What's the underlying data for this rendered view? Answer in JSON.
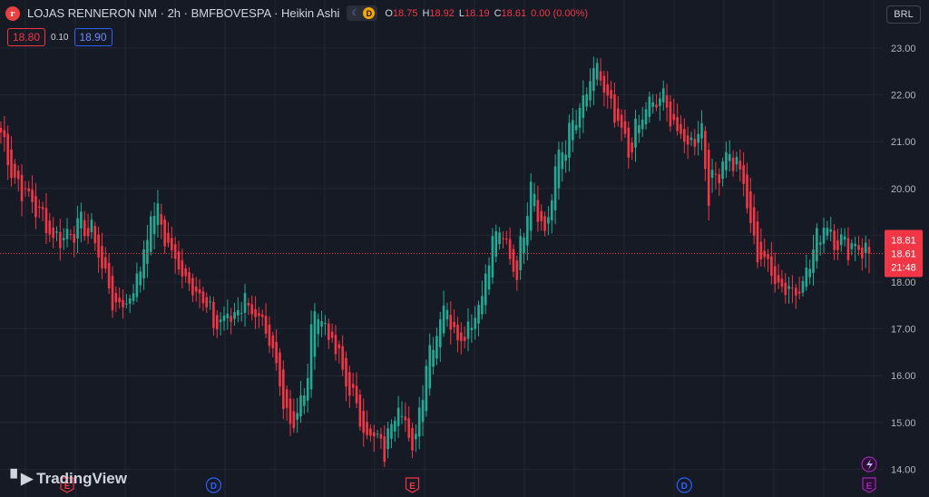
{
  "header": {
    "logo_letter": "r",
    "title": "LOJAS RENNERON NM · 2h · BMFBOVESPA · Heikin Ashi",
    "session_icon": "moon-icon",
    "session_badge": "D",
    "ohlc": [
      {
        "key": "O",
        "value": "18.75"
      },
      {
        "key": "H",
        "value": "18.92"
      },
      {
        "key": "L",
        "value": "18.19"
      },
      {
        "key": "C",
        "value": "18.61"
      },
      {
        "key": "",
        "value": "0.00 (0.00%)"
      }
    ]
  },
  "quote": {
    "sell": "18.80",
    "spread": "0.10",
    "buy": "18.90"
  },
  "currency": "BRL",
  "brand": "TradingView",
  "price_tags": {
    "high": "18.81",
    "last": "18.61",
    "countdown": "21:48"
  },
  "colors": {
    "up": "#22ab94",
    "down": "#f23645",
    "background": "#161a25",
    "grid": "#242733"
  },
  "event_markers": [
    {
      "label": "E",
      "kind": "earnings",
      "at_index": 19
    },
    {
      "label": "D",
      "kind": "dividend",
      "at_index": 61
    },
    {
      "label": "E",
      "kind": "earnings",
      "at_index": 118
    },
    {
      "label": "D",
      "kind": "dividend",
      "at_index": 196
    },
    {
      "label": "E",
      "kind": "earnings",
      "at_index": 249,
      "highlight": true
    }
  ],
  "chart_data": {
    "type": "candlestick",
    "style": "Heikin Ashi",
    "ylim": [
      13.8,
      23.2
    ],
    "y_ticks": [
      "23.00",
      "22.00",
      "21.00",
      "20.00",
      "19.00",
      "18.00",
      "17.00",
      "16.00",
      "15.00",
      "14.00"
    ],
    "y_tick_values": [
      23,
      22,
      21,
      20,
      19,
      18,
      17,
      16,
      15,
      14
    ],
    "candle_count": 250,
    "path_anchors": [
      [
        0,
        21.2
      ],
      [
        4,
        20.2
      ],
      [
        10,
        19.6
      ],
      [
        16,
        18.9
      ],
      [
        22,
        19.2
      ],
      [
        26,
        19.1
      ],
      [
        33,
        17.4
      ],
      [
        38,
        17.8
      ],
      [
        44,
        19.6
      ],
      [
        47,
        19.0
      ],
      [
        50,
        18.4
      ],
      [
        56,
        17.9
      ],
      [
        61,
        17.1
      ],
      [
        67,
        17.3
      ],
      [
        70,
        17.7
      ],
      [
        74,
        17.1
      ],
      [
        78,
        16.4
      ],
      [
        83,
        15.0
      ],
      [
        87,
        15.5
      ],
      [
        90,
        17.5
      ],
      [
        94,
        16.9
      ],
      [
        99,
        15.9
      ],
      [
        104,
        14.9
      ],
      [
        110,
        14.4
      ],
      [
        114,
        15.6
      ],
      [
        118,
        14.3
      ],
      [
        122,
        16.3
      ],
      [
        127,
        17.5
      ],
      [
        132,
        16.8
      ],
      [
        137,
        17.5
      ],
      [
        142,
        19.1
      ],
      [
        146,
        18.6
      ],
      [
        148,
        18.2
      ],
      [
        152,
        20.2
      ],
      [
        156,
        19.0
      ],
      [
        160,
        20.7
      ],
      [
        166,
        21.6
      ],
      [
        171,
        22.6
      ],
      [
        174,
        21.8
      ],
      [
        180,
        20.8
      ],
      [
        185,
        21.7
      ],
      [
        190,
        21.9
      ],
      [
        196,
        20.9
      ],
      [
        201,
        21.3
      ],
      [
        203,
        19.9
      ],
      [
        208,
        20.8
      ],
      [
        212,
        20.4
      ],
      [
        216,
        18.8
      ],
      [
        222,
        18.1
      ],
      [
        227,
        17.8
      ],
      [
        231,
        18.2
      ],
      [
        236,
        19.3
      ],
      [
        241,
        18.8
      ],
      [
        246,
        18.8
      ],
      [
        249,
        18.6
      ]
    ],
    "last": {
      "open": 18.75,
      "high": 18.92,
      "low": 18.19,
      "close": 18.61
    }
  }
}
